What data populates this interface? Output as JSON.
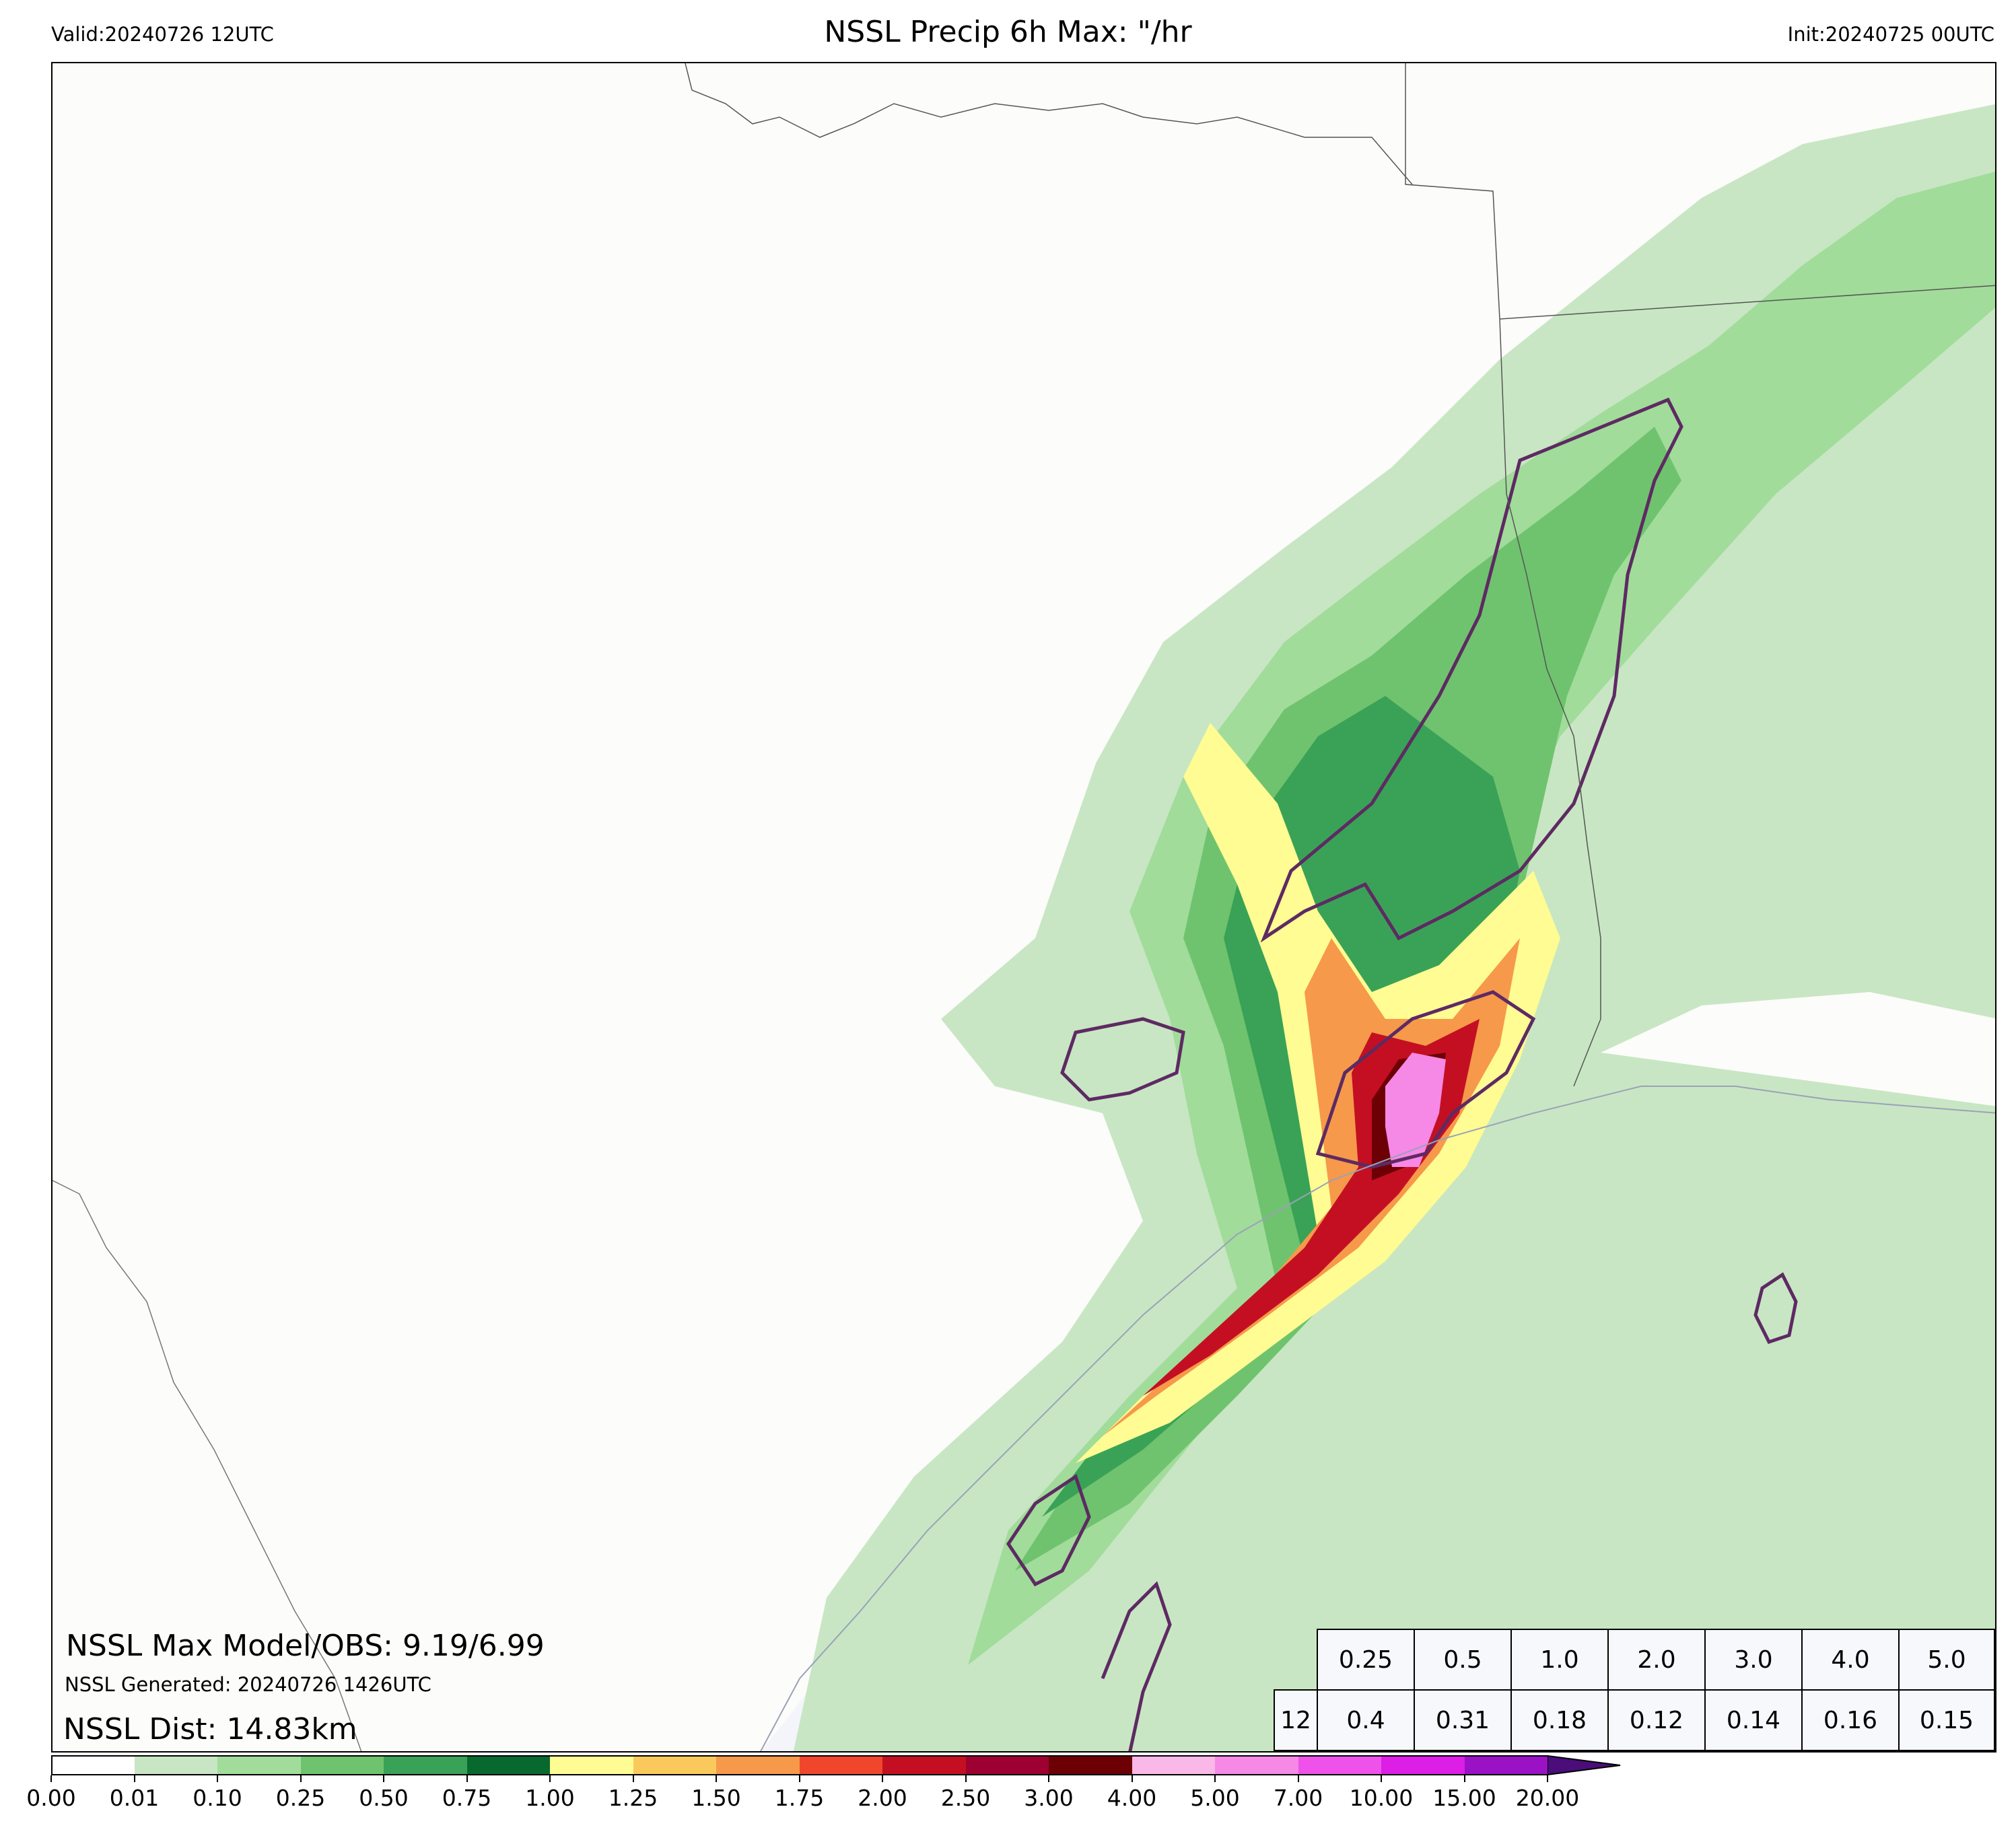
{
  "header": {
    "valid": "Valid:20240726 12UTC",
    "title": "NSSL Precip 6h Max: \"/hr",
    "init": "Init:20240725 00UTC"
  },
  "stats": {
    "max_model_obs": "NSSL Max Model/OBS: 9.19/6.99",
    "generated": "NSSL Generated: 20240726 1426UTC",
    "dist": "NSSL Dist: 14.83km"
  },
  "threshold_table": {
    "row_label": "12",
    "thresholds": [
      "0.25",
      "0.5",
      "1.0",
      "2.0",
      "3.0",
      "4.0",
      "5.0"
    ],
    "values": [
      "0.4",
      "0.31",
      "0.18",
      "0.12",
      "0.14",
      "0.16",
      "0.15"
    ]
  },
  "colorbar": {
    "ticks": [
      "0.00",
      "0.01",
      "0.10",
      "0.25",
      "0.50",
      "0.75",
      "1.00",
      "1.25",
      "1.50",
      "1.75",
      "2.00",
      "2.50",
      "3.00",
      "4.00",
      "5.00",
      "7.00",
      "10.00",
      "15.00",
      "20.00"
    ],
    "colors": [
      "#ffffff",
      "#c8e6c3",
      "#a1dc9a",
      "#6fc36e",
      "#3aa257",
      "#08692f",
      "#fefc92",
      "#f9ca5b",
      "#f6994a",
      "#f0472c",
      "#c40f22",
      "#9e0032",
      "#6d0005",
      "#fab8e8",
      "#f688e6",
      "#ee52ea",
      "#dd1ee6",
      "#9a11c6"
    ],
    "extend_color": "#4b0d7a"
  },
  "map_colors": {
    "land": "#fcfcfa",
    "ocean": "#f3f5fb",
    "observed_contour": "#5e2a63",
    "border": "#555555"
  }
}
